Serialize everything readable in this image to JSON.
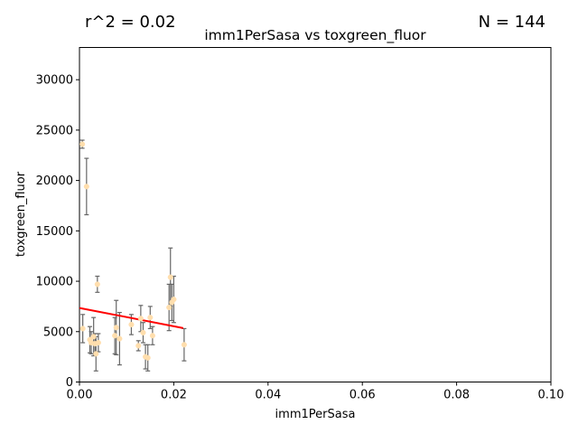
{
  "chart_data": {
    "type": "scatter",
    "title": "imm1PerSasa vs toxgreen_fluor",
    "xlabel": "imm1PerSasa",
    "ylabel": "toxgreen_fluor",
    "annotations": {
      "r2": "r^2 = 0.02",
      "n": "N = 144"
    },
    "xlim": [
      0,
      0.1
    ],
    "ylim": [
      0,
      33200
    ],
    "xticks": [
      0.0,
      0.02,
      0.04,
      0.06,
      0.08,
      0.1
    ],
    "xtick_labels": [
      "0.00",
      "0.02",
      "0.04",
      "0.06",
      "0.08",
      "0.10"
    ],
    "yticks": [
      0,
      5000,
      10000,
      15000,
      20000,
      25000,
      30000
    ],
    "ytick_labels": [
      "0",
      "5000",
      "10000",
      "15000",
      "20000",
      "25000",
      "30000"
    ],
    "grid": false,
    "points": [
      {
        "x": 0.0006,
        "y": 23600,
        "err": 400
      },
      {
        "x": 0.0007,
        "y": 5300,
        "err": 1400
      },
      {
        "x": 0.0015,
        "y": 19400,
        "err": 2800
      },
      {
        "x": 0.0022,
        "y": 4200,
        "err": 1300
      },
      {
        "x": 0.0025,
        "y": 3900,
        "err": 1100
      },
      {
        "x": 0.003,
        "y": 4500,
        "err": 1900
      },
      {
        "x": 0.0033,
        "y": 3800,
        "err": 1000
      },
      {
        "x": 0.0035,
        "y": 2800,
        "err": 1700
      },
      {
        "x": 0.0038,
        "y": 9700,
        "err": 800
      },
      {
        "x": 0.004,
        "y": 3900,
        "err": 900
      },
      {
        "x": 0.0075,
        "y": 4600,
        "err": 1800
      },
      {
        "x": 0.0078,
        "y": 5400,
        "err": 2700
      },
      {
        "x": 0.0085,
        "y": 4300,
        "err": 2600
      },
      {
        "x": 0.011,
        "y": 5700,
        "err": 1000
      },
      {
        "x": 0.0125,
        "y": 3600,
        "err": 500
      },
      {
        "x": 0.013,
        "y": 6300,
        "err": 1300
      },
      {
        "x": 0.0135,
        "y": 4900,
        "err": 1000
      },
      {
        "x": 0.014,
        "y": 2500,
        "err": 1200
      },
      {
        "x": 0.0145,
        "y": 2400,
        "err": 1300
      },
      {
        "x": 0.015,
        "y": 6400,
        "err": 1100
      },
      {
        "x": 0.0155,
        "y": 4600,
        "err": 900
      },
      {
        "x": 0.019,
        "y": 7400,
        "err": 2300
      },
      {
        "x": 0.0193,
        "y": 10400,
        "err": 2900
      },
      {
        "x": 0.0196,
        "y": 7900,
        "err": 1800
      },
      {
        "x": 0.02,
        "y": 8200,
        "err": 2300
      },
      {
        "x": 0.0222,
        "y": 3700,
        "err": 1600
      }
    ],
    "fit_line": {
      "x": [
        0.0,
        0.022
      ],
      "y": [
        7350,
        5350
      ]
    },
    "colors": {
      "point": "#ffdead",
      "errorbar": "#666666",
      "fit": "#ff0000",
      "axes": "#000000"
    }
  }
}
